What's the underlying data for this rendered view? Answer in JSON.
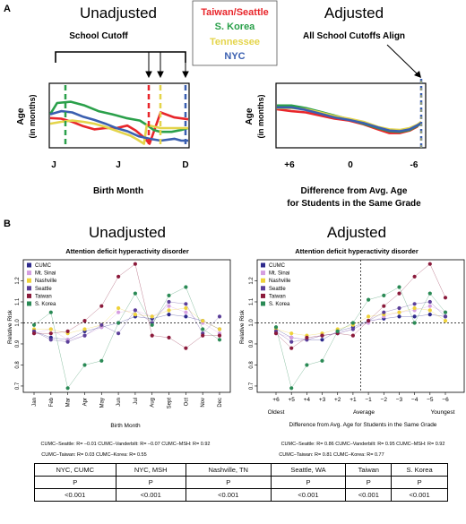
{
  "panel_a": {
    "label": "A",
    "left": {
      "title": "Unadjusted",
      "cutoff_label": "School Cutoff",
      "ylabel_line1": "Age",
      "ylabel_line2": "(in months)",
      "xticks": [
        "J",
        "J",
        "D"
      ],
      "xlabel": "Birth Month"
    },
    "legend": [
      {
        "label": "Taiwan/Seattle",
        "color": "#e8262b"
      },
      {
        "label": "S. Korea",
        "color": "#2aa04a"
      },
      {
        "label": "Tennessee",
        "color": "#e4d44a"
      },
      {
        "label": "NYC",
        "color": "#3a5fb0"
      }
    ],
    "right": {
      "title": "Adjusted",
      "cutoff_label": "All School Cutoffs Align",
      "ylabel_line1": "Age",
      "ylabel_line2": "(in months)",
      "xticks": [
        "+6",
        "0",
        "-6"
      ],
      "xlabel_line1": "Difference from Avg. Age",
      "xlabel_line2": "for Students in the Same Grade"
    }
  },
  "panel_b": {
    "label": "B",
    "colors": {
      "CUMC": "#2d2a8c",
      "Mt. Sinai": "#d59ee0",
      "Nashville": "#efd23a",
      "Seattle": "#5b3f99",
      "Taiwan": "#8b1a3b",
      "S. Korea": "#2a8a55"
    },
    "left": {
      "title": "Unadjusted",
      "subtitle": "Attention deficit hyperactivity disorder",
      "ylabel": "Relative Risk",
      "xlabel": "Birth Month",
      "stats_line1": "CUMC–Seattle: R= –0.01   CUMC–Vanderbilt: R= –0.07   CUMC–MSH: R= 0.92",
      "stats_line2": "CUMC–Taiwan: R= 0.03   CUMC–Korea: R= 0.55"
    },
    "right": {
      "title": "Adjusted",
      "subtitle": "Attention deficit hyperactivity disorder",
      "ylabel": "Relative Risk",
      "annot_left": "Oldest",
      "annot_mid": "Average",
      "annot_right": "Youngest",
      "xlabel": "Difference from Avg. Age for Students in the Same Grade",
      "stats_line1": "CUMC–Seattle: R= 0.86   CUMC–Vanderbilt: R= 0.95   CUMC–MSH: R= 0.92",
      "stats_line2": "CUMC–Taiwan: R= 0.81   CUMC–Korea: R= 0.77"
    }
  },
  "pvalue_table": {
    "headers": [
      "NYC, CUMC",
      "NYC, MSH",
      "Nashville, TN",
      "Seattle, WA",
      "Taiwan",
      "S. Korea"
    ],
    "subheader": "P",
    "values": [
      "<0.001",
      "<0.001",
      "<0.001",
      "<0.001",
      "<0.001",
      "<0.001"
    ]
  },
  "chart_data": [
    {
      "type": "line",
      "title": "Unadjusted",
      "xlabel": "Birth Month",
      "ylabel": "Age (in months)",
      "x_ticks": [
        "J",
        "J",
        "D"
      ],
      "series": [
        {
          "name": "Taiwan/Seattle",
          "color": "#e8262b",
          "points": [
            [
              0,
              0.46
            ],
            [
              0.08,
              0.45
            ],
            [
              0.16,
              0.4
            ],
            [
              0.24,
              0.33
            ],
            [
              0.32,
              0.28
            ],
            [
              0.4,
              0.3
            ],
            [
              0.48,
              0.3
            ],
            [
              0.56,
              0.34
            ],
            [
              0.62,
              0.26
            ],
            [
              0.68,
              0.15
            ],
            [
              0.72,
              0.05
            ],
            [
              0.8,
              0.55
            ],
            [
              0.9,
              0.47
            ],
            [
              1.0,
              0.44
            ]
          ]
        },
        {
          "name": "S. Korea",
          "color": "#2aa04a",
          "points": [
            [
              0,
              0.52
            ],
            [
              0.05,
              0.7
            ],
            [
              0.15,
              0.72
            ],
            [
              0.25,
              0.66
            ],
            [
              0.35,
              0.57
            ],
            [
              0.45,
              0.52
            ],
            [
              0.55,
              0.46
            ],
            [
              0.65,
              0.42
            ],
            [
              0.7,
              0.35
            ],
            [
              0.75,
              0.27
            ],
            [
              0.8,
              0.24
            ],
            [
              0.88,
              0.24
            ],
            [
              0.95,
              0.27
            ],
            [
              1.0,
              0.3
            ]
          ]
        },
        {
          "name": "Tennessee",
          "color": "#e4d44a",
          "points": [
            [
              0,
              0.37
            ],
            [
              0.08,
              0.4
            ],
            [
              0.16,
              0.42
            ],
            [
              0.24,
              0.4
            ],
            [
              0.32,
              0.37
            ],
            [
              0.4,
              0.32
            ],
            [
              0.5,
              0.24
            ],
            [
              0.58,
              0.18
            ],
            [
              0.63,
              0.12
            ],
            [
              0.68,
              0.05
            ],
            [
              0.7,
              0.35
            ],
            [
              0.8,
              0.3
            ],
            [
              0.9,
              0.3
            ],
            [
              1.0,
              0.3
            ]
          ]
        },
        {
          "name": "NYC",
          "color": "#3a5fb0",
          "points": [
            [
              0,
              0.52
            ],
            [
              0.08,
              0.57
            ],
            [
              0.16,
              0.55
            ],
            [
              0.24,
              0.48
            ],
            [
              0.32,
              0.43
            ],
            [
              0.4,
              0.37
            ],
            [
              0.48,
              0.3
            ],
            [
              0.56,
              0.25
            ],
            [
              0.64,
              0.17
            ],
            [
              0.72,
              0.13
            ],
            [
              0.8,
              0.1
            ],
            [
              0.9,
              0.13
            ],
            [
              0.95,
              0.1
            ],
            [
              1.0,
              0.1
            ]
          ]
        }
      ]
    },
    {
      "type": "line",
      "title": "Adjusted",
      "xlabel": "Difference from Avg. Age for Students in the Same Grade",
      "ylabel": "Age (in months)",
      "x_ticks": [
        "+6",
        "0",
        "-6"
      ],
      "series": [
        {
          "name": "Taiwan/Seattle",
          "color": "#e8262b",
          "points": [
            [
              0,
              0.6
            ],
            [
              0.1,
              0.57
            ],
            [
              0.2,
              0.55
            ],
            [
              0.3,
              0.5
            ],
            [
              0.4,
              0.45
            ],
            [
              0.5,
              0.42
            ],
            [
              0.6,
              0.36
            ],
            [
              0.7,
              0.28
            ],
            [
              0.78,
              0.22
            ],
            [
              0.85,
              0.22
            ],
            [
              0.92,
              0.26
            ],
            [
              0.97,
              0.32
            ],
            [
              1.0,
              0.4
            ]
          ]
        },
        {
          "name": "S. Korea",
          "color": "#2aa04a",
          "points": [
            [
              0,
              0.66
            ],
            [
              0.1,
              0.66
            ],
            [
              0.2,
              0.62
            ],
            [
              0.3,
              0.56
            ],
            [
              0.4,
              0.5
            ],
            [
              0.5,
              0.44
            ],
            [
              0.6,
              0.37
            ],
            [
              0.7,
              0.3
            ],
            [
              0.78,
              0.25
            ],
            [
              0.85,
              0.24
            ],
            [
              0.92,
              0.27
            ],
            [
              0.97,
              0.33
            ],
            [
              1.0,
              0.38
            ]
          ]
        },
        {
          "name": "Tennessee",
          "color": "#e4d44a",
          "points": [
            [
              0,
              0.62
            ],
            [
              0.1,
              0.62
            ],
            [
              0.2,
              0.6
            ],
            [
              0.3,
              0.55
            ],
            [
              0.4,
              0.49
            ],
            [
              0.5,
              0.45
            ],
            [
              0.6,
              0.4
            ],
            [
              0.7,
              0.32
            ],
            [
              0.78,
              0.28
            ],
            [
              0.85,
              0.27
            ],
            [
              0.92,
              0.3
            ],
            [
              0.97,
              0.35
            ],
            [
              1.0,
              0.4
            ]
          ]
        },
        {
          "name": "NYC",
          "color": "#3a5fb0",
          "points": [
            [
              0,
              0.63
            ],
            [
              0.1,
              0.63
            ],
            [
              0.2,
              0.59
            ],
            [
              0.3,
              0.53
            ],
            [
              0.4,
              0.47
            ],
            [
              0.5,
              0.43
            ],
            [
              0.6,
              0.38
            ],
            [
              0.7,
              0.31
            ],
            [
              0.78,
              0.26
            ],
            [
              0.85,
              0.25
            ],
            [
              0.92,
              0.28
            ],
            [
              0.97,
              0.34
            ],
            [
              1.0,
              0.38
            ]
          ]
        }
      ]
    },
    {
      "type": "line",
      "title": "Attention deficit hyperactivity disorder",
      "xlabel": "Birth Month",
      "ylabel": "Relative Risk",
      "categories": [
        "Jan",
        "Feb",
        "Mar",
        "Apr",
        "May",
        "Jun",
        "Jul",
        "Aug",
        "Sept",
        "Oct",
        "Nov",
        "Dec"
      ],
      "ylim": [
        0.67,
        1.3
      ],
      "yticks": [
        0.7,
        0.8,
        0.9,
        1.0,
        1.1,
        1.2
      ],
      "legend_position": "top-left",
      "series": [
        {
          "name": "CUMC",
          "values": [
            0.96,
            0.93,
            0.92,
            0.96,
            0.98,
            1.0,
            1.03,
            1.02,
            1.04,
            1.03,
            1.01,
            0.97
          ]
        },
        {
          "name": "Mt. Sinai",
          "values": [
            0.95,
            0.97,
            0.92,
            0.94,
            0.98,
            1.05,
            1.06,
            1.03,
            1.08,
            1.05,
            1.0,
            0.95
          ]
        },
        {
          "name": "Nashville",
          "values": [
            0.97,
            0.97,
            0.95,
            0.97,
            0.99,
            1.07,
            1.04,
            1.03,
            1.06,
            1.07,
            1.01,
            0.97
          ]
        },
        {
          "name": "Seattle",
          "values": [
            0.96,
            0.92,
            0.91,
            0.94,
            0.99,
            0.95,
            1.06,
            1.0,
            1.1,
            1.09,
            0.95,
            1.03
          ]
        },
        {
          "name": "Taiwan",
          "values": [
            0.95,
            0.95,
            0.96,
            1.01,
            1.08,
            1.22,
            1.28,
            0.94,
            0.93,
            0.88,
            0.94,
            0.94
          ]
        },
        {
          "name": "S. Korea",
          "values": [
            0.99,
            1.05,
            0.69,
            0.8,
            0.82,
            1.0,
            1.14,
            0.99,
            1.13,
            1.17,
            0.97,
            0.92
          ]
        }
      ]
    },
    {
      "type": "line",
      "title": "Attention deficit hyperactivity disorder",
      "xlabel": "Difference from Avg. Age for Students in the Same Grade",
      "ylabel": "Relative Risk",
      "categories": [
        "+6",
        "+5",
        "+4",
        "+3",
        "+2",
        "+1",
        "−1",
        "−2",
        "−3",
        "−4",
        "−5",
        "−6"
      ],
      "ylim": [
        0.67,
        1.3
      ],
      "yticks": [
        0.7,
        0.8,
        0.9,
        1.0,
        1.1,
        1.2
      ],
      "legend_position": "top-left",
      "series": [
        {
          "name": "CUMC",
          "values": [
            0.97,
            0.93,
            0.92,
            0.92,
            0.96,
            0.98,
            1.01,
            1.02,
            1.03,
            1.03,
            1.04,
            1.03
          ]
        },
        {
          "name": "Mt. Sinai",
          "values": [
            0.95,
            0.93,
            0.92,
            0.94,
            0.95,
            0.97,
            1.0,
            1.03,
            1.05,
            1.06,
            1.08,
            1.05
          ]
        },
        {
          "name": "Nashville",
          "values": [
            0.97,
            0.95,
            0.94,
            0.95,
            0.97,
            0.99,
            1.03,
            1.04,
            1.05,
            1.07,
            1.06,
            1.01
          ]
        },
        {
          "name": "Seattle",
          "values": [
            0.96,
            0.91,
            0.92,
            0.94,
            0.95,
            0.97,
            1.01,
            1.05,
            1.07,
            1.09,
            1.1,
            1.03
          ]
        },
        {
          "name": "Taiwan",
          "values": [
            0.95,
            0.88,
            0.93,
            0.94,
            0.95,
            0.94,
            1.01,
            1.08,
            1.14,
            1.22,
            1.28,
            1.12
          ]
        },
        {
          "name": "S. Korea",
          "values": [
            0.98,
            0.69,
            0.8,
            0.82,
            0.96,
            1.0,
            1.11,
            1.13,
            1.17,
            1.0,
            1.14,
            1.05
          ]
        }
      ]
    }
  ]
}
